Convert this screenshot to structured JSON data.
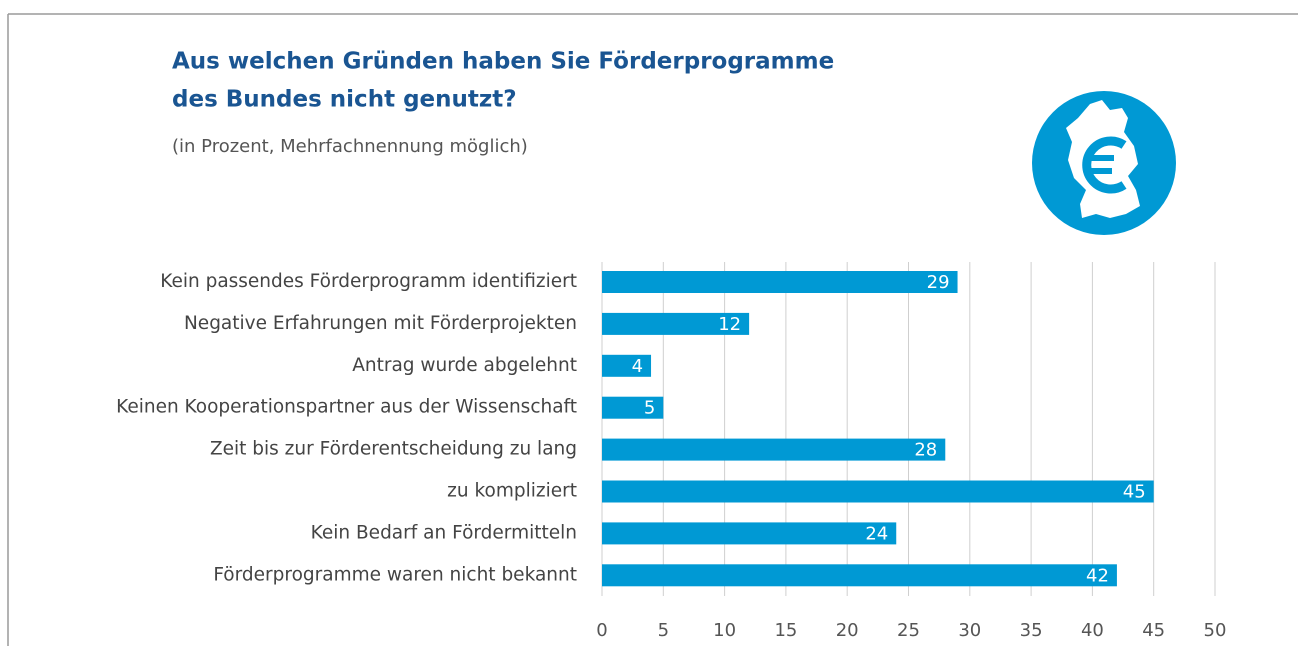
{
  "chart_data": {
    "type": "bar",
    "orientation": "horizontal",
    "title": [
      "Aus welchen Gründen haben Sie Förderprogramme",
      "des Bundes nicht genutzt?"
    ],
    "subtitle": "(in Prozent, Mehrfachnennung möglich)",
    "categories": [
      "Kein passendes Förderprogramm identifiziert",
      "Negative Erfahrungen mit Förderprojekten",
      "Antrag wurde abgelehnt",
      "Keinen Kooperationspartner aus der Wissenschaft",
      "Zeit bis zur Förderentscheidung zu lang",
      "zu kompliziert",
      "Kein Bedarf an Fördermitteln",
      "Förderprogramme waren nicht bekannt"
    ],
    "values": [
      29,
      12,
      4,
      5,
      28,
      45,
      24,
      42
    ],
    "color": "#0099d4",
    "xlim": [
      0,
      50
    ],
    "xticks": [
      0,
      5,
      10,
      15,
      20,
      25,
      30,
      35,
      40,
      45,
      50
    ],
    "grid": true
  }
}
